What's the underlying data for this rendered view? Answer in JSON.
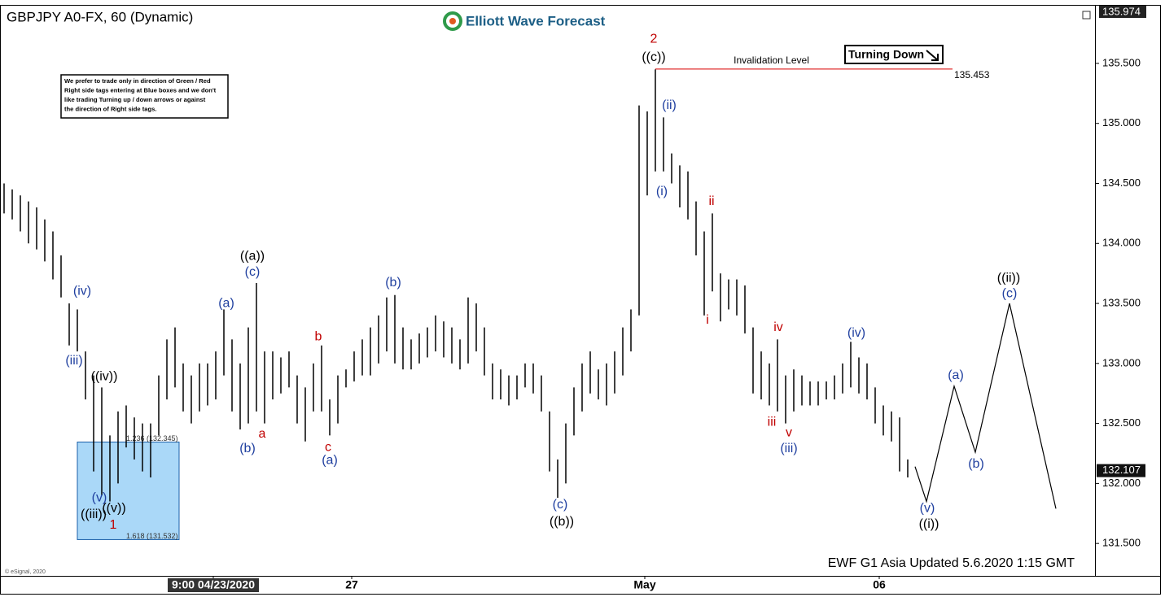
{
  "chart_data": {
    "type": "ohlc",
    "title": "GBPJPY A0-FX, 60 (Dynamic)",
    "logo": "Elliott Wave Forecast",
    "note": [
      "We prefer to trade only in direction of Green / Red",
      "Right side tags entering at Blue boxes and we don't",
      "like trading Turning up / down arrows or against",
      "the direction of Right side tags."
    ],
    "tag": "Turning Down",
    "footer": "EWF G1 Asia  Updated 5.6.2020 1:15 GMT",
    "copyright": "© eSignal, 2020",
    "color": "#000000",
    "xlim": [
      -0.5,
      134
    ],
    "ylim": [
      131.23,
      135.974
    ],
    "yticks": [
      {
        "value": 131.5,
        "label": "131.500"
      },
      {
        "value": 132,
        "label": "132.000"
      },
      {
        "value": 132.5,
        "label": "132.500"
      },
      {
        "value": 133,
        "label": "133.000"
      },
      {
        "value": 133.5,
        "label": "133.500"
      },
      {
        "value": 134,
        "label": "134.000"
      },
      {
        "value": 134.5,
        "label": "134.500"
      },
      {
        "value": 135,
        "label": "135.000"
      },
      {
        "value": 135.5,
        "label": "135.500"
      }
    ],
    "xticks": [
      {
        "value": 25.7,
        "label": "9:00 04/23/2020"
      },
      {
        "value": 42.7,
        "label": "27"
      },
      {
        "value": 78.7,
        "label": "May"
      },
      {
        "value": 107.5,
        "label": "06"
      }
    ],
    "last_price": 132.107,
    "x": [
      0,
      1,
      2,
      3,
      4,
      5,
      6,
      7,
      8,
      9,
      10,
      11,
      12,
      13,
      14,
      15,
      16,
      17,
      18,
      19,
      20,
      21,
      22,
      23,
      24,
      25,
      26,
      27,
      28,
      29,
      30,
      31,
      32,
      33,
      34,
      35,
      36,
      37,
      38,
      39,
      40,
      41,
      42,
      43,
      44,
      45,
      46,
      47,
      48,
      49,
      50,
      51,
      52,
      53,
      54,
      55,
      56,
      57,
      58,
      59,
      60,
      61,
      62,
      63,
      64,
      65,
      66,
      67,
      68,
      69,
      70,
      71,
      72,
      73,
      74,
      75,
      76,
      77,
      78,
      79,
      80,
      81,
      82,
      83,
      84,
      85,
      86,
      87,
      88,
      89,
      90,
      91,
      92,
      93,
      94,
      95,
      96,
      97,
      98,
      99,
      100,
      101,
      102,
      103,
      104,
      105,
      106,
      107,
      108,
      109,
      110,
      111
    ],
    "high": [
      134.5,
      134.45,
      134.4,
      134.35,
      134.3,
      134.2,
      134.1,
      133.9,
      133.5,
      133.45,
      133.1,
      132.9,
      132.8,
      132.4,
      132.6,
      132.65,
      132.55,
      132.5,
      132.5,
      132.9,
      133.2,
      133.3,
      133.0,
      132.9,
      133.0,
      133.0,
      133.1,
      133.45,
      133.2,
      133.0,
      133.3,
      133.67,
      133.1,
      133.1,
      133.05,
      133.1,
      132.9,
      132.8,
      133.0,
      133.15,
      132.7,
      132.9,
      132.95,
      133.1,
      133.2,
      133.3,
      133.4,
      133.55,
      133.57,
      133.3,
      133.2,
      133.25,
      133.3,
      133.4,
      133.35,
      133.3,
      133.2,
      133.55,
      133.5,
      133.3,
      133.0,
      132.95,
      132.9,
      132.9,
      133.0,
      133.0,
      132.9,
      132.6,
      132.2,
      132.5,
      132.8,
      133.0,
      133.1,
      132.95,
      133.0,
      133.1,
      133.3,
      133.45,
      135.15,
      135.1,
      135.45,
      135.05,
      134.75,
      134.65,
      134.6,
      134.35,
      134.1,
      134.25,
      133.75,
      133.7,
      133.7,
      133.65,
      133.3,
      133.1,
      133.0,
      133.2,
      132.9,
      132.95,
      132.9,
      132.85,
      132.85,
      132.85,
      132.9,
      133.0,
      133.18,
      133.05,
      133.0,
      132.8,
      132.65,
      132.6,
      132.55,
      132.2
    ],
    "low": [
      134.25,
      134.2,
      134.1,
      134.0,
      133.95,
      133.85,
      133.7,
      133.55,
      133.15,
      133.1,
      132.7,
      132.1,
      131.9,
      131.85,
      132.0,
      132.3,
      132.2,
      132.1,
      132.05,
      132.4,
      132.7,
      132.8,
      132.6,
      132.5,
      132.6,
      132.65,
      132.7,
      132.9,
      132.6,
      132.45,
      132.5,
      132.6,
      132.5,
      132.7,
      132.75,
      132.8,
      132.5,
      132.35,
      132.6,
      132.6,
      132.4,
      132.5,
      132.8,
      132.85,
      132.9,
      132.9,
      133.0,
      133.1,
      133.0,
      132.95,
      132.95,
      133.0,
      133.05,
      133.1,
      133.05,
      133.0,
      132.95,
      133.0,
      133.1,
      132.9,
      132.7,
      132.7,
      132.65,
      132.7,
      132.8,
      132.75,
      132.6,
      132.1,
      131.88,
      132.0,
      132.4,
      132.6,
      132.75,
      132.7,
      132.65,
      132.75,
      132.9,
      133.1,
      133.4,
      134.4,
      134.6,
      134.6,
      134.5,
      134.3,
      134.2,
      133.9,
      133.4,
      133.6,
      133.35,
      133.45,
      133.4,
      133.25,
      132.75,
      132.7,
      132.65,
      132.6,
      132.5,
      132.6,
      132.65,
      132.65,
      132.65,
      132.7,
      132.7,
      132.75,
      132.8,
      132.75,
      132.7,
      132.5,
      132.4,
      132.35,
      132.1,
      132.05
    ],
    "projection": {
      "x": [
        111.9,
        113.3,
        116.7,
        119.3,
        123.5,
        129.2
      ],
      "values": [
        132.14,
        131.85,
        132.81,
        132.26,
        133.5,
        131.79
      ]
    },
    "invalidation": {
      "label": "Invalidation Level",
      "value": 135.453,
      "x": [
        80,
        116.5
      ],
      "color": "#e03030"
    },
    "target_box": {
      "top": 132.345,
      "bottom": 131.532,
      "x": [
        9,
        21.5
      ],
      "top_label": "1.236 (132.345)",
      "bottom_label": "1.618 (131.532)",
      "color": "#aad8f8"
    },
    "annotations": [
      {
        "text": "(iv)",
        "x": 9.6,
        "y": 133.6,
        "color": "#1f3f9f"
      },
      {
        "text": "(iii)",
        "x": 8.6,
        "y": 133.02,
        "color": "#1f3f9f"
      },
      {
        "text": "((iv))",
        "x": 12.3,
        "y": 132.89,
        "color": "#000000"
      },
      {
        "text": "(v)",
        "x": 11.7,
        "y": 131.88,
        "color": "#1f3f9f"
      },
      {
        "text": "((iii))",
        "x": 11.0,
        "y": 131.74,
        "color": "#000000"
      },
      {
        "text": "((v))",
        "x": 13.5,
        "y": 131.79,
        "color": "#000000"
      },
      {
        "text": "1",
        "x": 13.4,
        "y": 131.65,
        "color": "#c00000"
      },
      {
        "text": "(a)",
        "x": 27.3,
        "y": 133.5,
        "color": "#1f3f9f"
      },
      {
        "text": "((a))",
        "x": 30.5,
        "y": 133.89,
        "color": "#000000"
      },
      {
        "text": "(c)",
        "x": 30.5,
        "y": 133.76,
        "color": "#1f3f9f"
      },
      {
        "text": "(b)",
        "x": 29.9,
        "y": 132.29,
        "color": "#1f3f9f"
      },
      {
        "text": "a",
        "x": 31.7,
        "y": 132.41,
        "color": "#c00000"
      },
      {
        "text": "b",
        "x": 38.6,
        "y": 133.22,
        "color": "#c00000"
      },
      {
        "text": "c",
        "x": 39.8,
        "y": 132.3,
        "color": "#c00000"
      },
      {
        "text": "(a)",
        "x": 40.0,
        "y": 132.19,
        "color": "#1f3f9f"
      },
      {
        "text": "(b)",
        "x": 47.8,
        "y": 133.67,
        "color": "#1f3f9f"
      },
      {
        "text": "(c)",
        "x": 68.3,
        "y": 131.82,
        "color": "#1f3f9f"
      },
      {
        "text": "((b))",
        "x": 68.5,
        "y": 131.68,
        "color": "#000000"
      },
      {
        "text": "2",
        "x": 79.8,
        "y": 135.7,
        "color": "#c00000"
      },
      {
        "text": "((c))",
        "x": 79.8,
        "y": 135.55,
        "color": "#000000"
      },
      {
        "text": "(ii)",
        "x": 81.7,
        "y": 135.15,
        "color": "#1f3f9f"
      },
      {
        "text": "(i)",
        "x": 80.8,
        "y": 134.43,
        "color": "#1f3f9f"
      },
      {
        "text": "ii",
        "x": 86.9,
        "y": 134.35,
        "color": "#c00000"
      },
      {
        "text": "i",
        "x": 86.4,
        "y": 133.36,
        "color": "#c00000"
      },
      {
        "text": "iv",
        "x": 95.1,
        "y": 133.3,
        "color": "#c00000"
      },
      {
        "text": "iii",
        "x": 94.3,
        "y": 132.51,
        "color": "#c00000"
      },
      {
        "text": "v",
        "x": 96.4,
        "y": 132.42,
        "color": "#c00000"
      },
      {
        "text": "(iii)",
        "x": 96.4,
        "y": 132.29,
        "color": "#1f3f9f"
      },
      {
        "text": "(iv)",
        "x": 104.7,
        "y": 133.25,
        "color": "#1f3f9f"
      },
      {
        "text": "(a)",
        "x": 116.9,
        "y": 132.9,
        "color": "#1f3f9f"
      },
      {
        "text": "(b)",
        "x": 119.4,
        "y": 132.16,
        "color": "#1f3f9f"
      },
      {
        "text": "((ii))",
        "x": 123.4,
        "y": 133.71,
        "color": "#000000"
      },
      {
        "text": "(c)",
        "x": 123.5,
        "y": 133.58,
        "color": "#1f3f9f"
      },
      {
        "text": "(v)",
        "x": 113.4,
        "y": 131.79,
        "color": "#1f3f9f"
      },
      {
        "text": "((i))",
        "x": 113.6,
        "y": 131.66,
        "color": "#000000"
      }
    ]
  }
}
